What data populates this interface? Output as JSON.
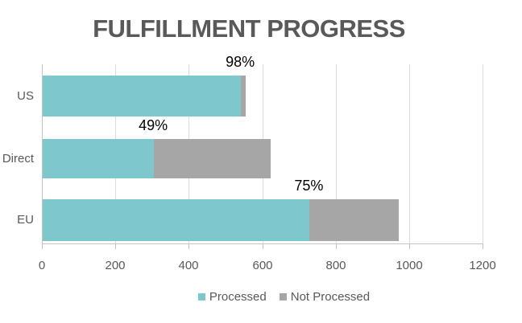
{
  "chart_data": {
    "type": "bar",
    "orientation": "horizontal",
    "stacked": true,
    "title": "FULFILLMENT PROGRESS",
    "categories": [
      "US",
      "Direct",
      "EU"
    ],
    "series": [
      {
        "name": "Processed",
        "color": "#7EC8CD",
        "values": [
          540,
          303,
          727
        ]
      },
      {
        "name": "Not Processed",
        "color": "#A6A6A6",
        "values": [
          12,
          317,
          243
        ]
      }
    ],
    "data_labels": [
      "98%",
      "49%",
      "75%"
    ],
    "xlabel": "",
    "ylabel": "",
    "xlim": [
      0,
      1200
    ],
    "xticks": [
      0,
      200,
      400,
      600,
      800,
      1000,
      1200
    ],
    "grid": true,
    "legend_position": "bottom",
    "style": {
      "title_color": "#595959",
      "axis_text_color": "#595959",
      "data_label_color": "#000000",
      "grid_color": "#DCDCDC",
      "axis_line_color": "#C3C3C3",
      "background": "#FFFFFF"
    }
  }
}
